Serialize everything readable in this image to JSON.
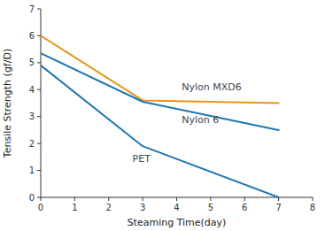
{
  "chart_data": {
    "type": "line",
    "xlabel": "Steaming Time(day)",
    "ylabel": "Tensile Strength (gf/D)",
    "x": [
      0,
      3,
      7
    ],
    "series": [
      {
        "color": "#E8951A",
        "values": [
          6.0,
          3.6,
          3.5
        ]
      },
      {
        "color": "#2077B4",
        "values": [
          5.35,
          3.55,
          2.5
        ]
      },
      {
        "color": "#2077B4",
        "values": [
          4.9,
          1.9,
          0.0
        ]
      }
    ],
    "annotations": [
      {
        "text": "Nylon MXD6",
        "x": 4.15,
        "y": 4.08
      },
      {
        "text": "Nylon 6",
        "x": 4.15,
        "y": 2.88
      },
      {
        "text": "PET",
        "x": 2.7,
        "y": 1.42
      }
    ],
    "xlim": [
      0,
      8
    ],
    "ylim": [
      0,
      7
    ],
    "xticks": [
      0,
      1,
      2,
      3,
      4,
      5,
      6,
      7,
      8
    ],
    "yticks": [
      0,
      1,
      2,
      3,
      4,
      5,
      6,
      7
    ]
  }
}
